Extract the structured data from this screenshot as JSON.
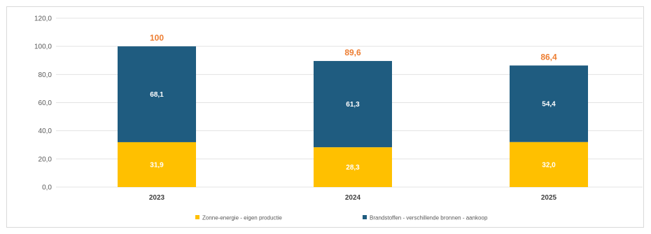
{
  "chart_data": {
    "type": "bar",
    "stacked": true,
    "title": "",
    "xlabel": "",
    "ylabel": "",
    "categories": [
      "2023",
      "2024",
      "2025"
    ],
    "series": [
      {
        "name": "Zonne-energie - eigen productie",
        "values": [
          31.9,
          28.3,
          32.0
        ],
        "labels": [
          "31,9",
          "28,3",
          "32,0"
        ],
        "color": "#ffc000"
      },
      {
        "name": "Brandstoffen - verschillende bronnen - aankoop",
        "values": [
          68.1,
          61.3,
          54.4
        ],
        "labels": [
          "68,1",
          "61,3",
          "54,4"
        ],
        "color": "#1f5c80"
      }
    ],
    "totals": [
      100,
      89.6,
      86.4
    ],
    "total_labels": [
      "100",
      "89,6",
      "86,4"
    ],
    "total_label_color": "#ed7d31",
    "ylim": [
      0,
      120
    ],
    "yticks": [
      0,
      20,
      40,
      60,
      80,
      100,
      120
    ],
    "ytick_labels": [
      "0,0",
      "20,0",
      "40,0",
      "60,0",
      "80,0",
      "100,0",
      "120,0"
    ],
    "grid": true,
    "gridline_color": "#e3e3e3",
    "legend_position": "bottom"
  }
}
